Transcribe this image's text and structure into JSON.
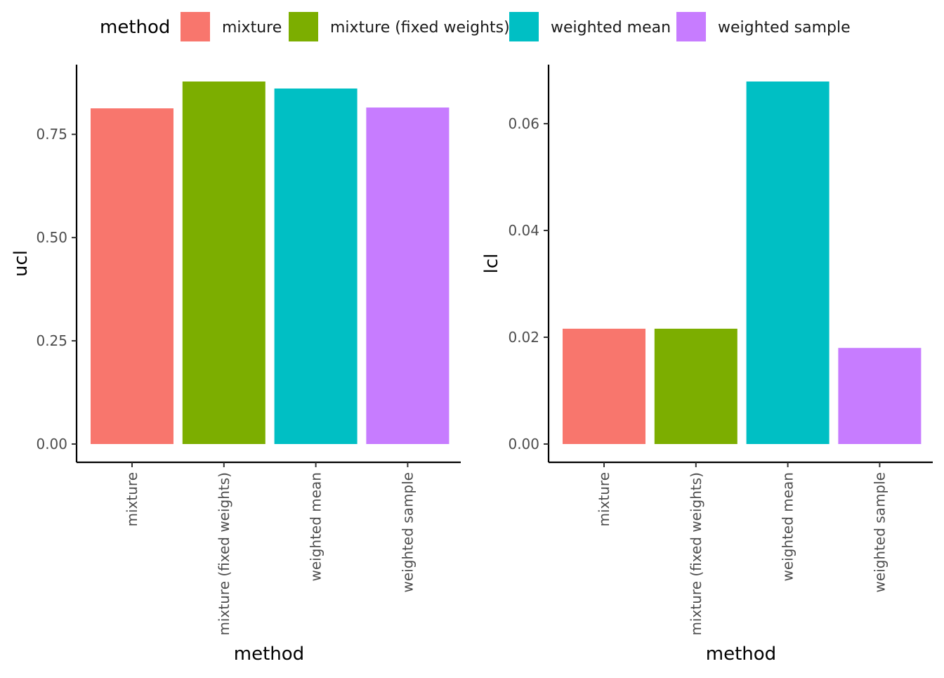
{
  "legend": {
    "title": "method",
    "position": "top",
    "items": [
      {
        "label": "mixture",
        "color": "#F8766D"
      },
      {
        "label": "mixture (fixed weights)",
        "color": "#7CAE00"
      },
      {
        "label": "weighted mean",
        "color": "#00BFC4"
      },
      {
        "label": "weighted sample",
        "color": "#C77CFF"
      }
    ]
  },
  "chart_data": [
    {
      "type": "bar",
      "title": "",
      "xlabel": "method",
      "ylabel": "ucl",
      "categories": [
        "mixture",
        "mixture (fixed weights)",
        "weighted mean",
        "weighted sample"
      ],
      "values": [
        0.813,
        0.878,
        0.861,
        0.815
      ],
      "colors": [
        "#F8766D",
        "#7CAE00",
        "#00BFC4",
        "#C77CFF"
      ],
      "ylim": [
        0,
        0.878
      ],
      "yticks": [
        0,
        0.25,
        0.5,
        0.75
      ],
      "ytick_labels": [
        "0.00",
        "0.25",
        "0.50",
        "0.75"
      ],
      "grid": false
    },
    {
      "type": "bar",
      "title": "",
      "xlabel": "method",
      "ylabel": "lcl",
      "categories": [
        "mixture",
        "mixture (fixed weights)",
        "weighted mean",
        "weighted sample"
      ],
      "values": [
        0.0216,
        0.0216,
        0.0679,
        0.018
      ],
      "colors": [
        "#F8766D",
        "#7CAE00",
        "#00BFC4",
        "#C77CFF"
      ],
      "ylim": [
        0,
        0.0679
      ],
      "yticks": [
        0,
        0.02,
        0.04,
        0.06
      ],
      "ytick_labels": [
        "0.00",
        "0.02",
        "0.04",
        "0.06"
      ],
      "grid": false
    }
  ]
}
